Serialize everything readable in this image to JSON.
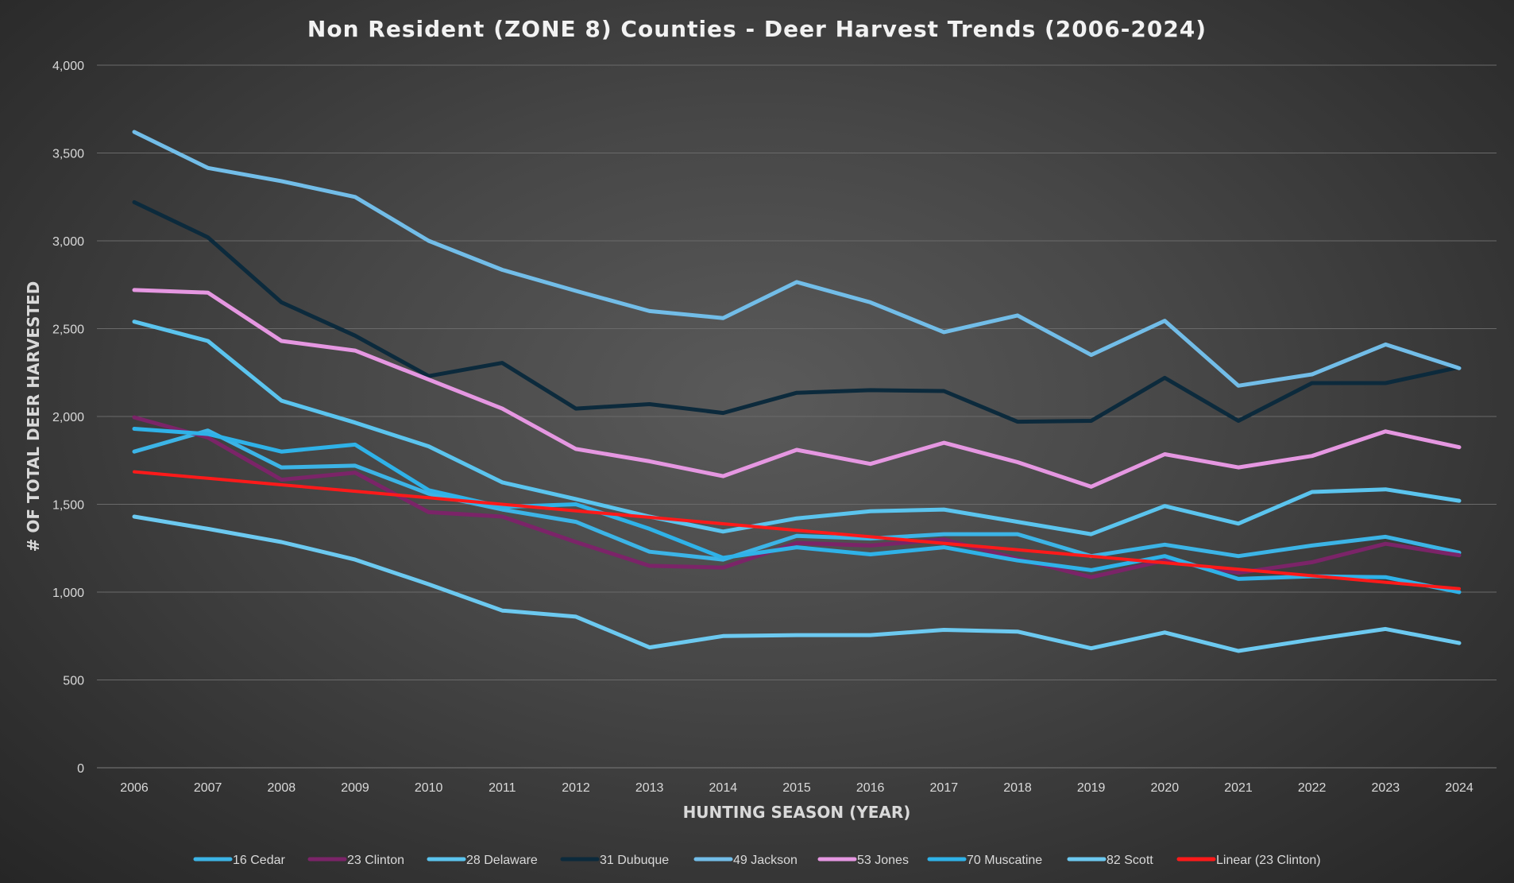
{
  "chart_data": {
    "type": "line",
    "title": "Non Resident (ZONE 8) Counties - Deer Harvest Trends (2006-2024)",
    "xlabel": "HUNTING SEASON (YEAR)",
    "ylabel": "# OF TOTAL DEER HARVESTED",
    "ylim": [
      0,
      4000
    ],
    "y_ticks": [
      0,
      500,
      1000,
      1500,
      2000,
      2500,
      3000,
      3500,
      4000
    ],
    "y_tick_labels": [
      "0",
      "500",
      "1,000",
      "1,500",
      "2,000",
      "2,500",
      "3,000",
      "3,500",
      "4,000"
    ],
    "grid": true,
    "legend_position": "bottom",
    "categories": [
      "2006",
      "2007",
      "2008",
      "2009",
      "2010",
      "2011",
      "2012",
      "2013",
      "2014",
      "2015",
      "2016",
      "2017",
      "2018",
      "2019",
      "2020",
      "2021",
      "2022",
      "2023",
      "2024"
    ],
    "series": [
      {
        "name": "16 Cedar",
        "color": "#3cb4e6",
        "values": [
          1800,
          1920,
          1710,
          1720,
          1560,
          1470,
          1400,
          1230,
          1185,
          1320,
          1305,
          1330,
          1330,
          1205,
          1270,
          1205,
          1265,
          1315,
          1225
        ]
      },
      {
        "name": "23 Clinton",
        "color": "#7b2468",
        "values": [
          1995,
          1880,
          1640,
          1680,
          1455,
          1430,
          1285,
          1150,
          1140,
          1280,
          1265,
          1300,
          1190,
          1085,
          1180,
          1110,
          1170,
          1275,
          1210
        ]
      },
      {
        "name": "28 Delaware",
        "color": "#5bc4ee",
        "values": [
          2540,
          2430,
          2090,
          1965,
          1830,
          1625,
          1530,
          1430,
          1345,
          1420,
          1460,
          1470,
          1400,
          1330,
          1490,
          1390,
          1570,
          1585,
          1520
        ]
      },
      {
        "name": "31 Dubuque",
        "color": "#0c2a3c",
        "values": [
          3220,
          3020,
          2650,
          2460,
          2230,
          2305,
          2045,
          2070,
          2020,
          2135,
          2150,
          2145,
          1970,
          1975,
          2220,
          1975,
          2190,
          2190,
          2280
        ]
      },
      {
        "name": "49 Jackson",
        "color": "#72bde8",
        "values": [
          3620,
          3415,
          3340,
          3250,
          3000,
          2835,
          2715,
          2600,
          2560,
          2765,
          2650,
          2480,
          2575,
          2350,
          2545,
          2175,
          2240,
          2410,
          2275
        ]
      },
      {
        "name": "53 Jones",
        "color": "#e597e1",
        "values": [
          2720,
          2705,
          2430,
          2375,
          2210,
          2045,
          1815,
          1745,
          1660,
          1810,
          1730,
          1850,
          1740,
          1600,
          1785,
          1710,
          1775,
          1915,
          1825
        ]
      },
      {
        "name": "70 Muscatine",
        "color": "#2fb2e8",
        "values": [
          1930,
          1900,
          1800,
          1840,
          1580,
          1485,
          1500,
          1360,
          1195,
          1255,
          1215,
          1255,
          1180,
          1125,
          1205,
          1075,
          1090,
          1085,
          1000
        ]
      },
      {
        "name": "82 Scott",
        "color": "#6cc9f0",
        "values": [
          1430,
          1360,
          1285,
          1185,
          1045,
          895,
          860,
          685,
          750,
          755,
          755,
          785,
          775,
          680,
          770,
          665,
          730,
          790,
          710
        ]
      },
      {
        "name": "Linear (23 Clinton)",
        "color": "#ff1a1a",
        "values": [
          1685,
          1648,
          1611,
          1574,
          1537,
          1500,
          1463,
          1426,
          1389,
          1352,
          1315,
          1278,
          1241,
          1204,
          1167,
          1130,
          1093,
          1056,
          1019
        ]
      }
    ]
  }
}
